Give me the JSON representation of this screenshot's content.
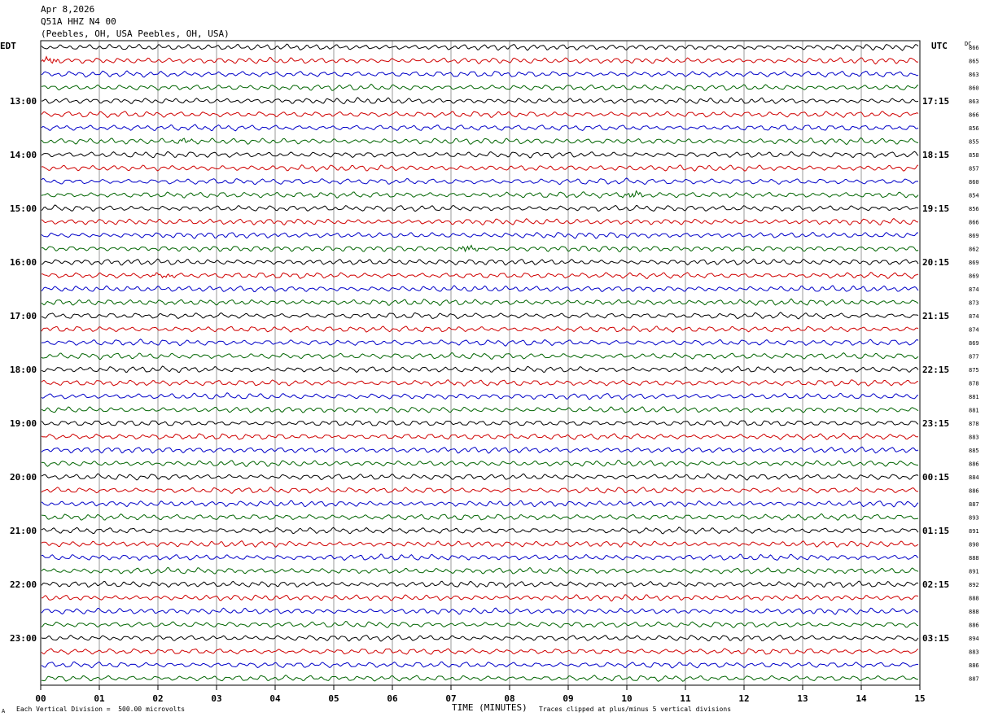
{
  "header": {
    "date": "Apr 8,2026",
    "station": "Q51A HHZ N4 00",
    "location": "(Peebles, OH, USA Peebles, OH, USA)"
  },
  "left_timezone": "EDT",
  "right_timezone": "UTC",
  "dc_label": "DC",
  "footer": {
    "scale": "Each Vertical Division =  500.00 microvolts",
    "clip": "Traces clipped at plus/minus 5 vertical divisions",
    "mark": "A"
  },
  "trace_colors": [
    "#000000",
    "#d00000",
    "#0000c8",
    "#006400"
  ],
  "chart_data": {
    "type": "line",
    "title": "Apr 8,2026 Q51A HHZ N4 00 (Peebles, OH, USA Peebles, OH, USA)",
    "xlabel": "TIME (MINUTES)",
    "xlim": [
      0,
      15
    ],
    "x_ticks": [
      "00",
      "01",
      "02",
      "03",
      "04",
      "05",
      "06",
      "07",
      "08",
      "09",
      "10",
      "11",
      "12",
      "13",
      "14",
      "15"
    ],
    "grid": "vertical lines at each minute",
    "row_count": 48,
    "left_hour_labels": [
      {
        "row": 4,
        "label": "13:00"
      },
      {
        "row": 8,
        "label": "14:00"
      },
      {
        "row": 12,
        "label": "15:00"
      },
      {
        "row": 16,
        "label": "16:00"
      },
      {
        "row": 20,
        "label": "17:00"
      },
      {
        "row": 24,
        "label": "18:00"
      },
      {
        "row": 28,
        "label": "19:00"
      },
      {
        "row": 32,
        "label": "20:00"
      },
      {
        "row": 36,
        "label": "21:00"
      },
      {
        "row": 40,
        "label": "22:00"
      },
      {
        "row": 44,
        "label": "23:00"
      }
    ],
    "right_hour_labels": [
      {
        "row": 4,
        "label": "17:15"
      },
      {
        "row": 8,
        "label": "18:15"
      },
      {
        "row": 12,
        "label": "19:15"
      },
      {
        "row": 16,
        "label": "20:15"
      },
      {
        "row": 20,
        "label": "21:15"
      },
      {
        "row": 24,
        "label": "22:15"
      },
      {
        "row": 28,
        "label": "23:15"
      },
      {
        "row": 32,
        "label": "00:15"
      },
      {
        "row": 36,
        "label": "01:15"
      },
      {
        "row": 40,
        "label": "02:15"
      },
      {
        "row": 44,
        "label": "03:15"
      }
    ],
    "dc_offsets": [
      866,
      865,
      863,
      860,
      863,
      866,
      856,
      855,
      858,
      857,
      860,
      854,
      856,
      866,
      869,
      862,
      869,
      869,
      874,
      873,
      874,
      874,
      869,
      877,
      875,
      878,
      881,
      881,
      878,
      883,
      885,
      886,
      884,
      886,
      887,
      893,
      891,
      890,
      888,
      891,
      892,
      888,
      888,
      886,
      894,
      883,
      886,
      887
    ],
    "events": [
      {
        "row": 1,
        "minute": 0.15,
        "amplitude": "medium"
      },
      {
        "row": 7,
        "minute": 2.45,
        "amplitude": "small"
      },
      {
        "row": 11,
        "minute": 10.1,
        "amplitude": "medium"
      },
      {
        "row": 15,
        "minute": 7.3,
        "amplitude": "medium"
      },
      {
        "row": 17,
        "minute": 2.1,
        "amplitude": "small"
      }
    ]
  }
}
